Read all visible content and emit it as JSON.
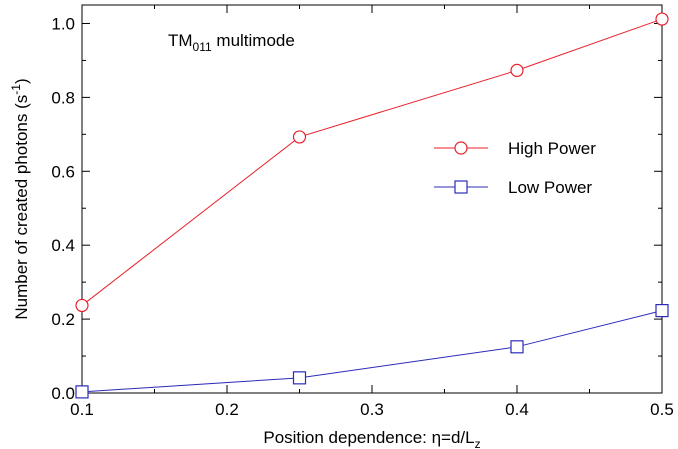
{
  "chart_data": {
    "type": "line",
    "annotation": {
      "main": "TM",
      "sub": "011",
      "rest": " multimode"
    },
    "xlabel": {
      "main": "Position dependence: η=d/L",
      "sub": "z"
    },
    "ylabel": {
      "main": "Number of created photons (s",
      "sup": "-1",
      "end": ")"
    },
    "xlim": [
      0.1,
      0.5
    ],
    "ylim": [
      0.0,
      1.05
    ],
    "xticks": [
      0.1,
      0.2,
      0.3,
      0.4,
      0.5
    ],
    "xtick_labels": [
      "0.1",
      "0.2",
      "0.3",
      "0.4",
      "0.5"
    ],
    "yticks": [
      0.0,
      0.2,
      0.4,
      0.6,
      0.8,
      1.0
    ],
    "ytick_labels": [
      "0.0",
      "0.2",
      "0.4",
      "0.6",
      "0.8",
      "1.0"
    ],
    "grid": false,
    "legend_position": "center-right",
    "series": [
      {
        "name": "High Power",
        "color": "#e8202a",
        "marker": "circle",
        "x": [
          0.1,
          0.25,
          0.4,
          0.5
        ],
        "y": [
          0.237,
          0.693,
          0.873,
          1.012
        ]
      },
      {
        "name": "Low Power",
        "color": "#2b2bb8",
        "marker": "square",
        "x": [
          0.1,
          0.25,
          0.4,
          0.5
        ],
        "y": [
          0.003,
          0.041,
          0.125,
          0.223
        ]
      }
    ]
  }
}
